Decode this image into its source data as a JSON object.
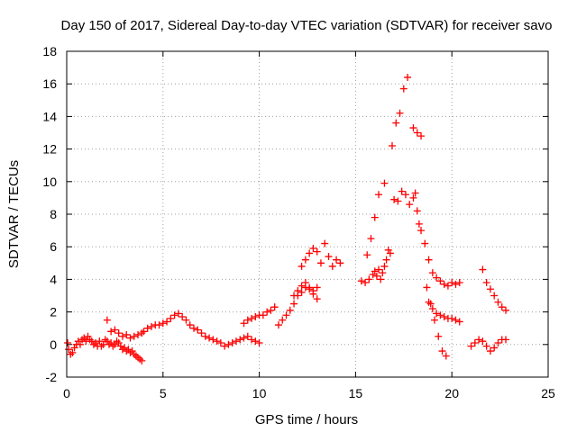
{
  "chart_data": {
    "type": "scatter",
    "title": "Day 150 of 2017, Sidereal Day-to-day VTEC variation (SDTVAR) for receiver savo",
    "xlabel": "GPS time / hours",
    "ylabel": "SDTVAR / TECUs",
    "xlim": [
      0,
      25
    ],
    "ylim": [
      -2,
      18
    ],
    "xticks": [
      0,
      5,
      10,
      15,
      20,
      25
    ],
    "yticks": [
      -2,
      0,
      2,
      4,
      6,
      8,
      10,
      12,
      14,
      16,
      18
    ],
    "grid": true,
    "marker": "+",
    "color": "#ff0000",
    "series": [
      {
        "name": "SDTVAR",
        "x": [
          0.05,
          0.1,
          0.2,
          0.3,
          0.4,
          0.5,
          0.6,
          0.7,
          0.8,
          0.9,
          1.0,
          1.1,
          1.2,
          1.3,
          1.4,
          1.5,
          1.6,
          1.7,
          1.8,
          1.9,
          2.0,
          2.1,
          2.2,
          2.3,
          2.4,
          2.5,
          2.6,
          2.7,
          2.8,
          2.9,
          3.0,
          3.1,
          3.2,
          3.3,
          3.4,
          3.5,
          3.6,
          3.7,
          3.8,
          3.9,
          2.1,
          2.3,
          2.5,
          2.7,
          2.9,
          3.1,
          3.3,
          3.5,
          3.7,
          3.9,
          4.0,
          4.2,
          4.4,
          4.6,
          4.8,
          5.0,
          5.2,
          5.4,
          5.6,
          5.8,
          6.0,
          6.2,
          6.4,
          6.6,
          6.8,
          7.0,
          7.2,
          7.4,
          7.6,
          7.8,
          8.0,
          8.2,
          8.4,
          8.6,
          8.8,
          9.0,
          9.2,
          9.4,
          9.6,
          9.8,
          10.0,
          9.2,
          9.4,
          9.6,
          9.8,
          10.0,
          10.2,
          10.4,
          10.6,
          10.8,
          11.0,
          11.2,
          11.4,
          11.6,
          11.8,
          12.0,
          12.2,
          12.4,
          12.6,
          12.8,
          13.0,
          11.8,
          12.0,
          12.2,
          12.4,
          12.6,
          12.8,
          13.0,
          12.2,
          12.4,
          12.6,
          12.8,
          13.0,
          13.2,
          13.4,
          13.6,
          13.8,
          14.0,
          14.2,
          15.3,
          15.5,
          15.7,
          15.9,
          16.0,
          16.1,
          16.2,
          16.3,
          16.4,
          16.5,
          16.6,
          16.7,
          16.8,
          15.6,
          15.8,
          16.0,
          16.2,
          16.5,
          17.0,
          17.2,
          17.4,
          17.6,
          17.8,
          18.0,
          18.1,
          18.2,
          18.3,
          18.4,
          18.6,
          18.8,
          19.0,
          19.2,
          19.4,
          19.6,
          19.8,
          20.0,
          20.2,
          20.4,
          18.7,
          18.9,
          19.1,
          19.3,
          19.5,
          19.7,
          18.8,
          19.0,
          19.2,
          19.4,
          19.6,
          19.8,
          20.0,
          20.2,
          20.4,
          16.9,
          17.1,
          17.3,
          17.5,
          17.7,
          18.0,
          18.2,
          18.4,
          21.0,
          21.2,
          21.4,
          21.6,
          21.8,
          22.0,
          22.2,
          22.4,
          22.6,
          22.8,
          21.6,
          21.8,
          22.0,
          22.2,
          22.4,
          22.6,
          22.8
        ],
        "y": [
          0.1,
          -0.3,
          -0.6,
          -0.5,
          -0.2,
          0.0,
          0.2,
          0.0,
          0.3,
          0.4,
          0.2,
          0.5,
          0.3,
          0.2,
          0.0,
          0.1,
          -0.1,
          0.2,
          -0.1,
          0.0,
          0.3,
          0.2,
          0.0,
          0.1,
          -0.1,
          0.0,
          0.2,
          0.1,
          -0.1,
          -0.3,
          -0.2,
          -0.4,
          -0.3,
          -0.5,
          -0.4,
          -0.6,
          -0.7,
          -0.8,
          -0.9,
          -1.0,
          1.5,
          0.8,
          0.9,
          0.7,
          0.5,
          0.6,
          0.4,
          0.5,
          0.6,
          0.7,
          0.8,
          1.0,
          1.1,
          1.2,
          1.2,
          1.3,
          1.4,
          1.6,
          1.8,
          1.9,
          1.7,
          1.5,
          1.2,
          1.0,
          0.9,
          0.7,
          0.5,
          0.4,
          0.3,
          0.2,
          0.1,
          -0.1,
          0.0,
          0.1,
          0.2,
          0.3,
          0.4,
          0.5,
          0.3,
          0.2,
          0.1,
          1.3,
          1.5,
          1.6,
          1.7,
          1.8,
          1.8,
          2.0,
          2.1,
          2.3,
          1.2,
          1.5,
          1.8,
          2.1,
          2.5,
          3.0,
          3.2,
          3.5,
          3.4,
          3.3,
          3.5,
          3.0,
          3.3,
          3.6,
          3.8,
          3.5,
          3.1,
          2.8,
          4.8,
          5.2,
          5.6,
          5.9,
          5.7,
          5.0,
          6.2,
          5.4,
          4.8,
          5.2,
          5.0,
          3.9,
          3.8,
          4.0,
          4.3,
          4.5,
          4.2,
          4.6,
          4.0,
          4.4,
          4.8,
          5.2,
          5.8,
          5.6,
          5.5,
          6.5,
          7.8,
          9.2,
          9.9,
          8.9,
          8.8,
          9.4,
          9.2,
          8.6,
          9.0,
          9.3,
          8.2,
          7.4,
          7.0,
          6.2,
          5.2,
          4.4,
          4.1,
          3.9,
          3.7,
          3.6,
          3.8,
          3.7,
          3.8,
          3.5,
          2.5,
          1.5,
          0.5,
          -0.4,
          -0.7,
          2.6,
          2.2,
          1.9,
          1.8,
          1.7,
          1.6,
          1.6,
          1.5,
          1.4,
          12.2,
          13.6,
          14.2,
          15.7,
          16.4,
          13.3,
          13.0,
          12.8,
          -0.1,
          0.1,
          0.3,
          0.2,
          -0.1,
          -0.4,
          -0.2,
          0.1,
          0.3,
          0.3,
          4.6,
          3.8,
          3.4,
          3.0,
          2.6,
          2.3,
          2.1
        ]
      }
    ]
  }
}
